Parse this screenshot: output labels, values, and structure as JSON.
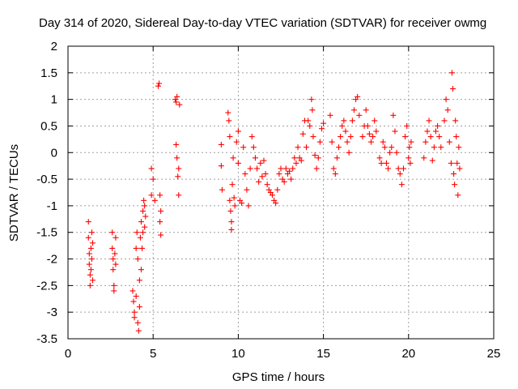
{
  "chart_data": {
    "type": "scatter",
    "title": "Day 314 of 2020, Sidereal Day-to-day VTEC variation (SDTVAR) for receiver owmg",
    "xlabel": "GPS time / hours",
    "ylabel": "SDTVAR / TECUs",
    "xlim": [
      0,
      25
    ],
    "ylim": [
      -3.5,
      2
    ],
    "xticks": [
      0,
      5,
      10,
      15,
      20,
      25
    ],
    "xtick_labels": [
      "0",
      "5",
      "10",
      "15",
      "20",
      "25"
    ],
    "yticks": [
      -3.5,
      -3,
      -2.5,
      -2,
      -1.5,
      -1,
      -0.5,
      0,
      0.5,
      1,
      1.5,
      2
    ],
    "ytick_labels": [
      "-3.5",
      "-3",
      "-2.5",
      "-2",
      "-1.5",
      "-1",
      "-0.5",
      "0",
      "0.5",
      "1",
      "1.5",
      "2"
    ],
    "grid": true,
    "marker": "+",
    "color": "#ff0000",
    "series": [
      {
        "name": "SDTVAR",
        "points": [
          [
            1.2,
            -1.3
          ],
          [
            1.2,
            -1.6
          ],
          [
            1.25,
            -1.9
          ],
          [
            1.25,
            -2.1
          ],
          [
            1.3,
            -2.3
          ],
          [
            1.3,
            -2.5
          ],
          [
            1.35,
            -2.2
          ],
          [
            1.35,
            -1.8
          ],
          [
            1.4,
            -1.5
          ],
          [
            1.4,
            -2.0
          ],
          [
            1.45,
            -1.7
          ],
          [
            1.45,
            -2.4
          ],
          [
            2.6,
            -1.5
          ],
          [
            2.6,
            -1.8
          ],
          [
            2.65,
            -2.0
          ],
          [
            2.65,
            -2.2
          ],
          [
            2.7,
            -2.5
          ],
          [
            2.7,
            -2.6
          ],
          [
            2.75,
            -1.9
          ],
          [
            2.8,
            -1.6
          ],
          [
            2.8,
            -2.1
          ],
          [
            3.8,
            -2.6
          ],
          [
            3.85,
            -2.8
          ],
          [
            3.9,
            -3.0
          ],
          [
            3.9,
            -3.1
          ],
          [
            4.0,
            -2.7
          ],
          [
            4.0,
            -1.8
          ],
          [
            4.05,
            -1.5
          ],
          [
            4.1,
            -2.0
          ],
          [
            4.1,
            -3.2
          ],
          [
            4.15,
            -3.35
          ],
          [
            4.2,
            -2.9
          ],
          [
            4.2,
            -2.4
          ],
          [
            4.25,
            -1.6
          ],
          [
            4.3,
            -1.3
          ],
          [
            4.3,
            -2.2
          ],
          [
            4.35,
            -1.8
          ],
          [
            4.4,
            -1.1
          ],
          [
            4.4,
            -1.5
          ],
          [
            4.45,
            -0.9
          ],
          [
            4.5,
            -1.0
          ],
          [
            4.5,
            -1.4
          ],
          [
            4.55,
            -1.2
          ],
          [
            4.9,
            -0.3
          ],
          [
            4.9,
            -0.8
          ],
          [
            5.0,
            -0.5
          ],
          [
            5.1,
            -0.9
          ],
          [
            5.3,
            1.25
          ],
          [
            5.35,
            1.3
          ],
          [
            5.4,
            -0.8
          ],
          [
            5.4,
            -1.3
          ],
          [
            5.45,
            -1.55
          ],
          [
            5.45,
            -1.1
          ],
          [
            6.3,
            1.0
          ],
          [
            6.35,
            0.95
          ],
          [
            6.35,
            0.15
          ],
          [
            6.4,
            1.05
          ],
          [
            6.4,
            -0.1
          ],
          [
            6.45,
            -0.45
          ],
          [
            6.5,
            -0.8
          ],
          [
            6.5,
            -0.3
          ],
          [
            6.55,
            0.9
          ],
          [
            9.0,
            0.15
          ],
          [
            9.0,
            -0.25
          ],
          [
            9.05,
            -0.7
          ],
          [
            9.4,
            0.75
          ],
          [
            9.45,
            0.6
          ],
          [
            9.5,
            0.3
          ],
          [
            9.5,
            -0.9
          ],
          [
            9.55,
            -1.1
          ],
          [
            9.6,
            -1.3
          ],
          [
            9.6,
            -1.45
          ],
          [
            9.65,
            -0.6
          ],
          [
            9.7,
            -0.1
          ],
          [
            9.75,
            -0.85
          ],
          [
            9.8,
            -1.0
          ],
          [
            9.9,
            0.2
          ],
          [
            10.0,
            0.4
          ],
          [
            10.0,
            -0.2
          ],
          [
            10.1,
            -0.9
          ],
          [
            10.2,
            -0.95
          ],
          [
            10.3,
            0.1
          ],
          [
            10.4,
            -0.4
          ],
          [
            10.5,
            -0.7
          ],
          [
            10.6,
            -1.0
          ],
          [
            10.7,
            -0.3
          ],
          [
            10.8,
            0.3
          ],
          [
            10.9,
            0.1
          ],
          [
            11.0,
            -0.1
          ],
          [
            11.1,
            -0.3
          ],
          [
            11.2,
            -0.55
          ],
          [
            11.3,
            -0.2
          ],
          [
            11.4,
            -0.45
          ],
          [
            11.5,
            -0.15
          ],
          [
            11.6,
            -0.4
          ],
          [
            11.7,
            -0.6
          ],
          [
            11.8,
            -0.7
          ],
          [
            11.9,
            -0.75
          ],
          [
            12.0,
            -0.8
          ],
          [
            12.1,
            -0.9
          ],
          [
            12.2,
            -0.95
          ],
          [
            12.3,
            -0.7
          ],
          [
            12.4,
            -0.4
          ],
          [
            12.5,
            -0.3
          ],
          [
            12.6,
            -0.5
          ],
          [
            12.7,
            -0.55
          ],
          [
            12.8,
            -0.3
          ],
          [
            12.9,
            -0.4
          ],
          [
            13.0,
            -0.35
          ],
          [
            13.1,
            -0.5
          ],
          [
            13.2,
            -0.3
          ],
          [
            13.3,
            -0.1
          ],
          [
            13.4,
            -0.2
          ],
          [
            13.5,
            0.1
          ],
          [
            13.6,
            -0.1
          ],
          [
            13.7,
            -0.15
          ],
          [
            13.8,
            0.35
          ],
          [
            13.9,
            0.6
          ],
          [
            14.0,
            0.1
          ],
          [
            14.1,
            0.6
          ],
          [
            14.2,
            0.5
          ],
          [
            14.3,
            1.0
          ],
          [
            14.35,
            0.8
          ],
          [
            14.4,
            0.3
          ],
          [
            14.5,
            -0.05
          ],
          [
            14.6,
            -0.3
          ],
          [
            14.7,
            -0.1
          ],
          [
            14.8,
            0.2
          ],
          [
            14.9,
            0.45
          ],
          [
            15.0,
            0.55
          ],
          [
            15.4,
            0.7
          ],
          [
            15.5,
            0.2
          ],
          [
            15.6,
            -0.3
          ],
          [
            15.7,
            -0.4
          ],
          [
            15.8,
            -0.1
          ],
          [
            15.9,
            0.1
          ],
          [
            16.0,
            0.3
          ],
          [
            16.1,
            0.5
          ],
          [
            16.2,
            0.6
          ],
          [
            16.3,
            0.4
          ],
          [
            16.4,
            0.2
          ],
          [
            16.5,
            0.0
          ],
          [
            16.6,
            0.3
          ],
          [
            16.7,
            0.6
          ],
          [
            16.8,
            0.8
          ],
          [
            16.9,
            1.0
          ],
          [
            17.0,
            1.05
          ],
          [
            17.1,
            0.7
          ],
          [
            17.3,
            0.3
          ],
          [
            17.4,
            0.5
          ],
          [
            17.5,
            0.8
          ],
          [
            17.6,
            0.5
          ],
          [
            17.7,
            0.35
          ],
          [
            17.8,
            0.2
          ],
          [
            17.9,
            0.3
          ],
          [
            18.0,
            0.6
          ],
          [
            18.1,
            0.4
          ],
          [
            18.3,
            -0.1
          ],
          [
            18.4,
            -0.2
          ],
          [
            18.5,
            0.2
          ],
          [
            18.6,
            0.1
          ],
          [
            18.7,
            -0.2
          ],
          [
            18.8,
            -0.3
          ],
          [
            18.9,
            0.0
          ],
          [
            19.0,
            0.1
          ],
          [
            19.1,
            0.7
          ],
          [
            19.2,
            0.4
          ],
          [
            19.3,
            0.0
          ],
          [
            19.4,
            -0.3
          ],
          [
            19.5,
            -0.4
          ],
          [
            19.6,
            -0.6
          ],
          [
            19.7,
            -0.3
          ],
          [
            19.8,
            0.3
          ],
          [
            19.9,
            0.5
          ],
          [
            20.0,
            -0.1
          ],
          [
            20.05,
            0.1
          ],
          [
            20.1,
            -0.2
          ],
          [
            20.15,
            0.2
          ],
          [
            20.9,
            -0.1
          ],
          [
            21.0,
            0.2
          ],
          [
            21.1,
            0.4
          ],
          [
            21.2,
            0.6
          ],
          [
            21.3,
            0.3
          ],
          [
            21.4,
            -0.15
          ],
          [
            21.5,
            0.1
          ],
          [
            21.6,
            0.4
          ],
          [
            21.7,
            0.5
          ],
          [
            21.8,
            0.3
          ],
          [
            21.9,
            0.1
          ],
          [
            22.1,
            0.6
          ],
          [
            22.2,
            1.0
          ],
          [
            22.3,
            0.8
          ],
          [
            22.4,
            0.2
          ],
          [
            22.5,
            -0.2
          ],
          [
            22.55,
            1.5
          ],
          [
            22.6,
            1.2
          ],
          [
            22.65,
            -0.4
          ],
          [
            22.7,
            -0.6
          ],
          [
            22.75,
            0.6
          ],
          [
            22.8,
            0.3
          ],
          [
            22.85,
            -0.2
          ],
          [
            22.9,
            -0.8
          ],
          [
            22.95,
            0.1
          ],
          [
            23.0,
            -0.3
          ]
        ]
      }
    ]
  }
}
